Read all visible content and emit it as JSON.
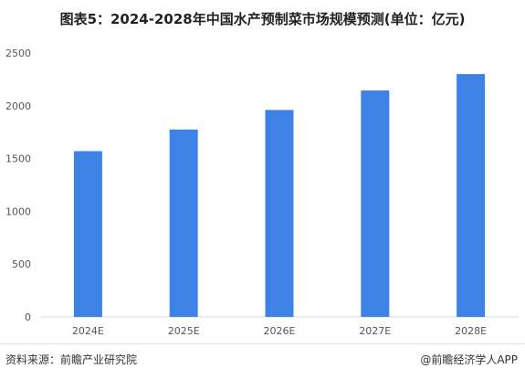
{
  "chart_data": {
    "type": "bar",
    "title": "图表5：2024-2028年中国水产预制菜市场规模预测(单位：亿元)",
    "categories": [
      "2024E",
      "2025E",
      "2026E",
      "2027E",
      "2028E"
    ],
    "values": [
      1570,
      1775,
      1960,
      2145,
      2300
    ],
    "xlabel": "",
    "ylabel": "",
    "ylim": [
      0,
      2500
    ],
    "yticks": [
      0,
      500,
      1000,
      1500,
      2000,
      2500
    ],
    "grid": false,
    "bar_color": "#3e82e8"
  },
  "footer": {
    "source": "资料来源：前瞻产业研究院",
    "credit": "@前瞻经济学人APP"
  }
}
